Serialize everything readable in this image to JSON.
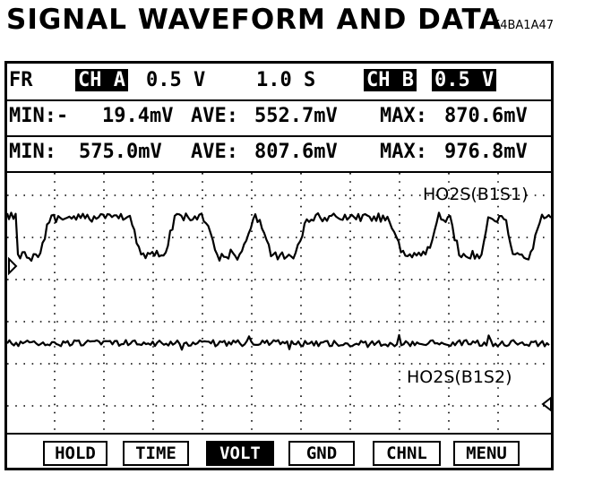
{
  "header": {
    "title": "SIGNAL WAVEFORM AND DATA",
    "code": "E4BA1A47"
  },
  "status_row": {
    "mode": "FR",
    "ch_a_label": "CH A",
    "ch_a_scale": "0.5 V",
    "time_scale": "1.0 S",
    "ch_b_label": "CH B",
    "ch_b_scale": "0.5 V"
  },
  "channel_a_stats": {
    "min_label": "MIN:-",
    "min_value": "19.4mV",
    "ave_label": "AVE:",
    "ave_value": "552.7mV",
    "max_label": "MAX:",
    "max_value": "870.6mV"
  },
  "channel_b_stats": {
    "min_label": "MIN:",
    "min_value": "575.0mV",
    "ave_label": "AVE:",
    "ave_value": "807.6mV",
    "max_label": "MAX:",
    "max_value": "976.8mV"
  },
  "traces": {
    "upper_label": "HO2S(B1S1)",
    "lower_label": "HO2S(B1S2)"
  },
  "buttons": {
    "hold": "HOLD",
    "time": "TIME",
    "volt": "VOLT",
    "gnd": "GND",
    "chnl": "CHNL",
    "menu": "MENU"
  }
}
